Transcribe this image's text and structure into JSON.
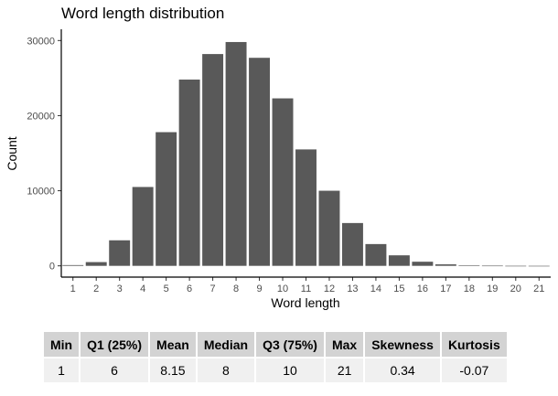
{
  "chart_data": {
    "type": "bar",
    "title": "Word length distribution",
    "xlabel": "Word length",
    "ylabel": "Count",
    "categories": [
      "1",
      "2",
      "3",
      "4",
      "5",
      "6",
      "7",
      "8",
      "9",
      "10",
      "11",
      "12",
      "13",
      "14",
      "15",
      "16",
      "17",
      "18",
      "19",
      "20",
      "21"
    ],
    "values": [
      100,
      500,
      3400,
      10500,
      17800,
      24800,
      28200,
      29800,
      27700,
      22300,
      15500,
      10000,
      5700,
      2900,
      1400,
      550,
      200,
      70,
      25,
      5,
      2
    ],
    "yticks": [
      0,
      10000,
      20000,
      30000
    ],
    "ylim": [
      -1500,
      31500
    ],
    "grid": false,
    "bar_color": "#595959"
  },
  "stats_table": {
    "headers": [
      "Min",
      "Q1 (25%)",
      "Mean",
      "Median",
      "Q3 (75%)",
      "Max",
      "Skewness",
      "Kurtosis"
    ],
    "values": [
      "1",
      "6",
      "8.15",
      "8",
      "10",
      "21",
      "0.34",
      "-0.07"
    ]
  }
}
